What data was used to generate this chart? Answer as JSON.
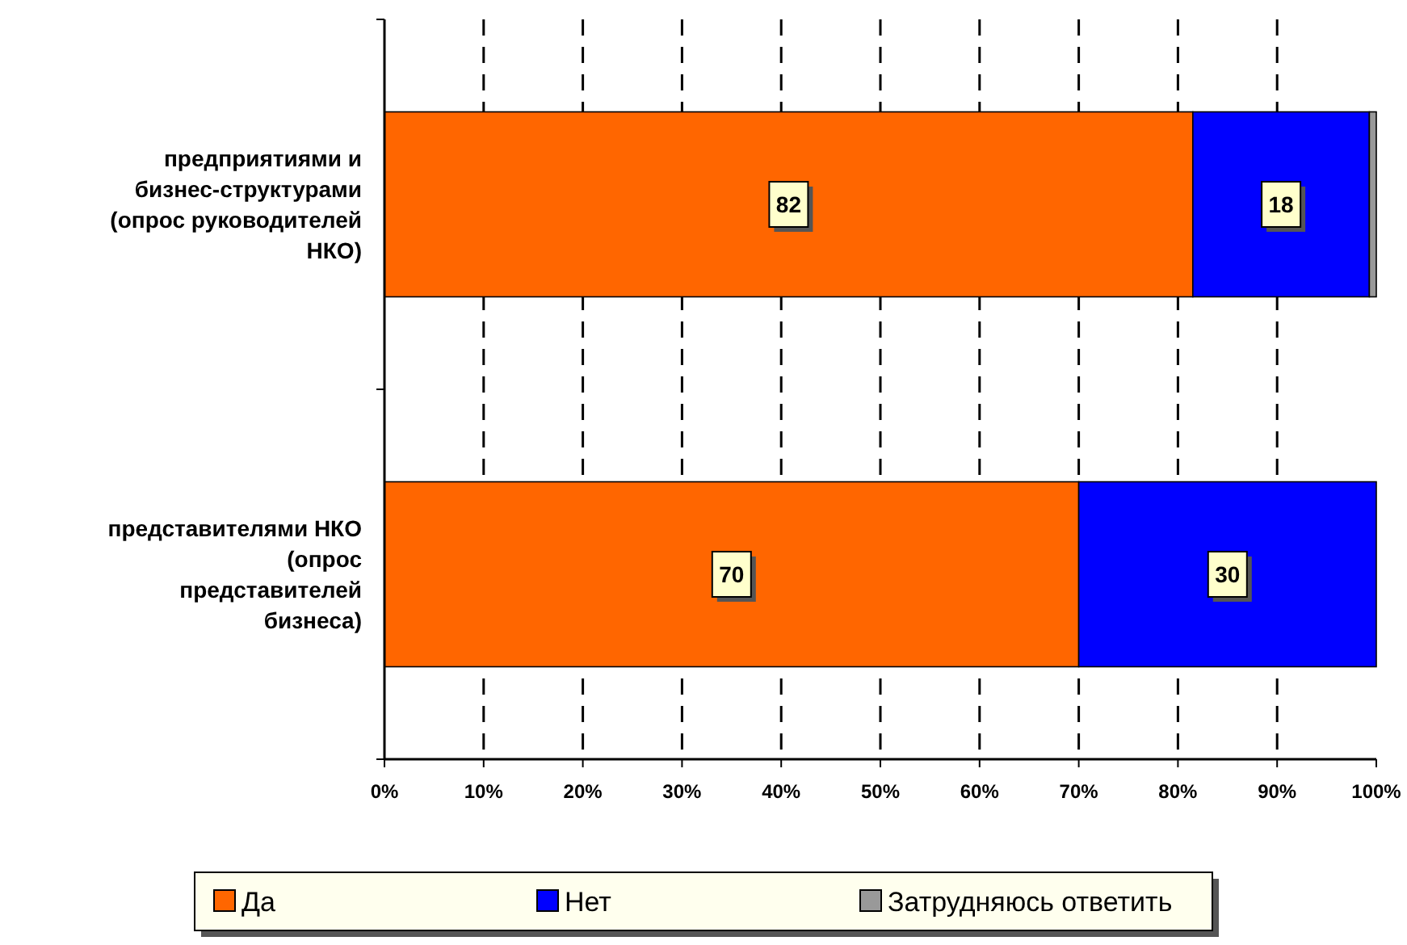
{
  "chart_data": {
    "type": "bar",
    "orientation": "horizontal",
    "stacked": true,
    "categories": [
      "предприятиями и бизнес-структурами (опрос руководителей НКО)",
      "представителями НКО (опрос представителей бизнеса)"
    ],
    "series": [
      {
        "name": "Да",
        "color": "#ff6600",
        "values": [
          81.5,
          70
        ],
        "value_labels": [
          "82",
          "70"
        ]
      },
      {
        "name": "Нет",
        "color": "#0000ff",
        "values": [
          17.8,
          30
        ],
        "value_labels": [
          "18",
          "30"
        ]
      },
      {
        "name": "Затрудняюсь ответить",
        "color": "#999999",
        "values": [
          0.7,
          null
        ],
        "value_labels": [
          null,
          null
        ]
      }
    ],
    "xlim": [
      0,
      100
    ],
    "xticks": [
      {
        "value": 0,
        "label": "0%"
      },
      {
        "value": 10,
        "label": "10%"
      },
      {
        "value": 20,
        "label": "20%"
      },
      {
        "value": 30,
        "label": "30%"
      },
      {
        "value": 40,
        "label": "40%"
      },
      {
        "value": 50,
        "label": "50%"
      },
      {
        "value": 60,
        "label": "60%"
      },
      {
        "value": 70,
        "label": "70%"
      },
      {
        "value": 80,
        "label": "80%"
      },
      {
        "value": 90,
        "label": "90%"
      },
      {
        "value": 100,
        "label": "100%"
      }
    ],
    "grid": "x",
    "legend": "bottom"
  }
}
